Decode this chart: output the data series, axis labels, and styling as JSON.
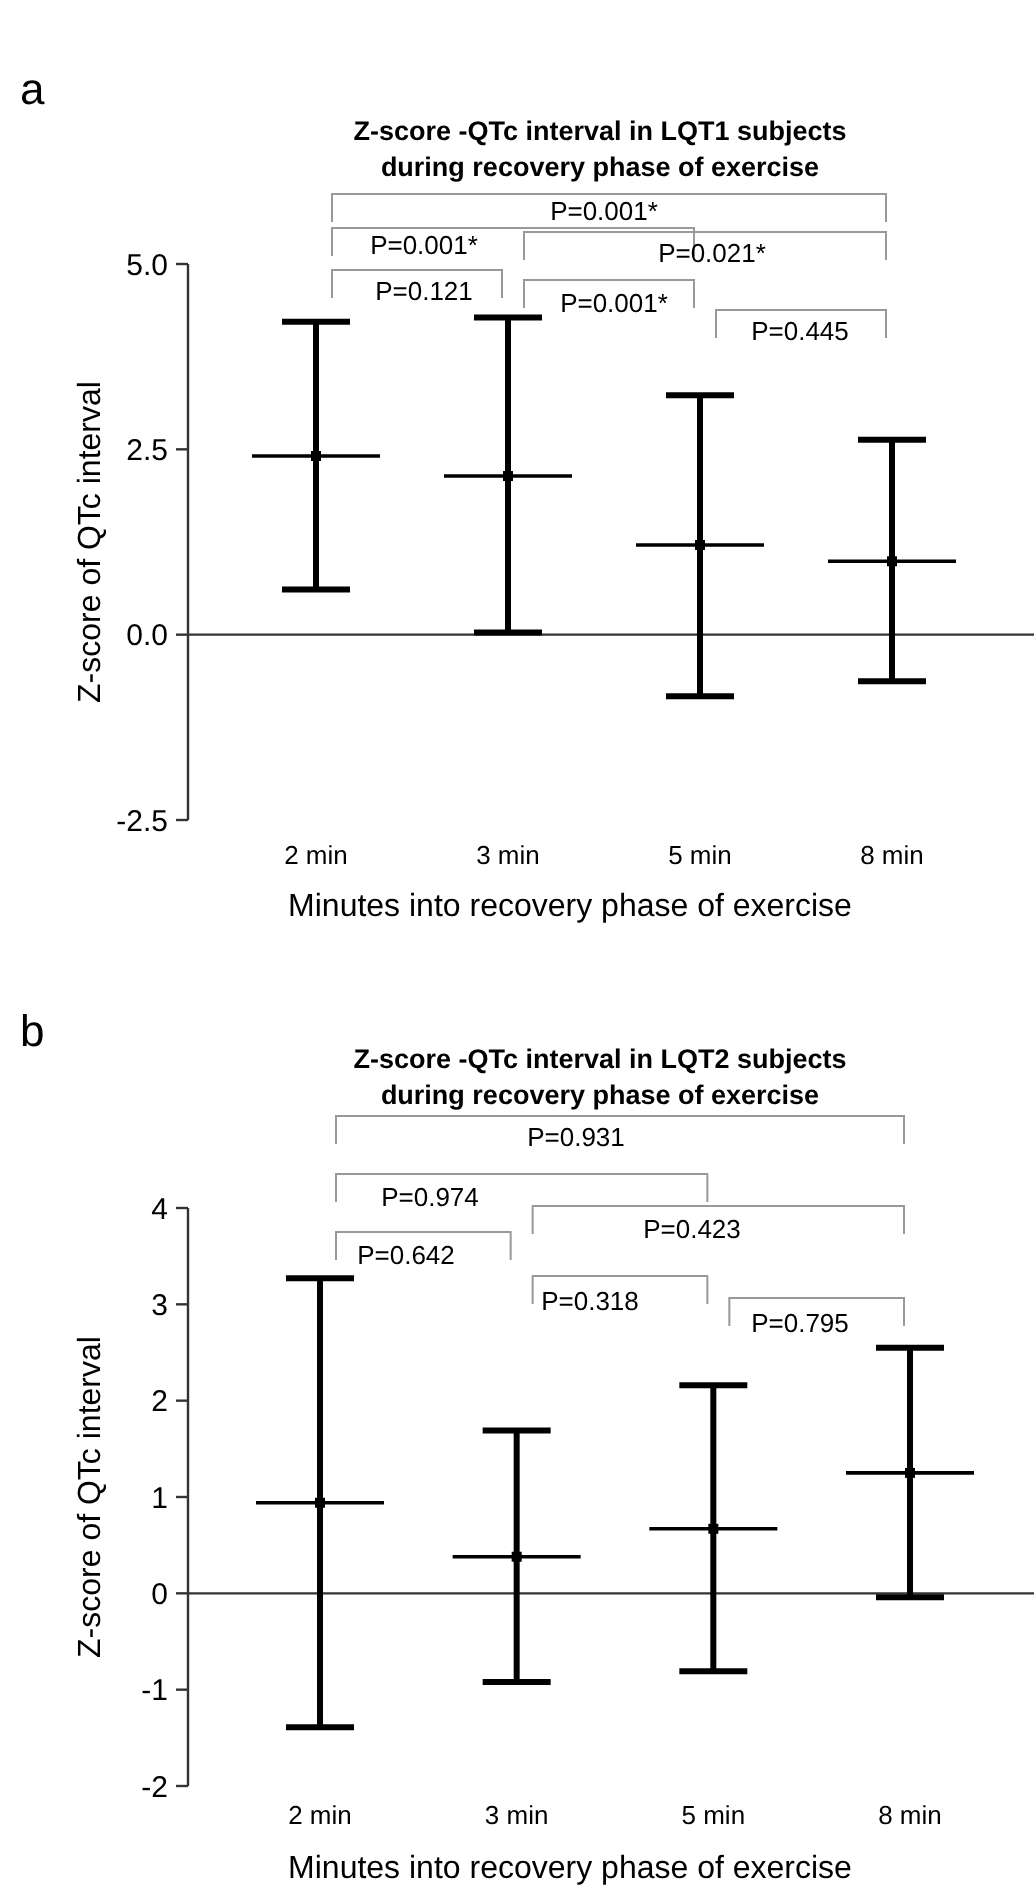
{
  "chart_data": [
    {
      "type": "scatter",
      "title": "Z-score -QTc interval in LQT1 subjects\nduring recovery phase of exercise",
      "xlabel": "Minutes into recovery phase of exercise",
      "ylabel": "Z-score of QTc interval",
      "categories": [
        "2 min",
        "3 min",
        "5 min",
        "8 min"
      ],
      "color": "#000000",
      "values": [
        2.41,
        2.14,
        1.21,
        0.99
      ],
      "errors": [
        [
          0.61,
          4.22
        ],
        [
          0.03,
          4.28
        ],
        [
          -0.83,
          3.23
        ],
        [
          -0.63,
          2.63
        ]
      ],
      "ylim": [
        -2.5,
        5
      ],
      "yticks": [
        {
          "value": -2.5,
          "label": "-2.5"
        },
        {
          "value": 0,
          "label": "0.0"
        },
        {
          "value": 2.5,
          "label": "2.5"
        },
        {
          "value": 5,
          "label": "5.0"
        }
      ],
      "annotations": [
        "a",
        "P=0.001*",
        "P=0.001*",
        "P=0.121",
        "P=0.021*",
        "P=0.001*",
        "P=0.445"
      ]
    },
    {
      "type": "scatter",
      "title": "Z-score -QTc interval in LQT2 subjects\nduring recovery phase of exercise",
      "xlabel": "Minutes into recovery phase of exercise",
      "ylabel": "Z-score of QTc interval",
      "categories": [
        "2 min",
        "3 min",
        "5 min",
        "8 min"
      ],
      "color": "#000000",
      "values": [
        0.94,
        0.38,
        0.67,
        1.25
      ],
      "errors": [
        [
          -1.39,
          3.27
        ],
        [
          -0.92,
          1.69
        ],
        [
          -0.81,
          2.16
        ],
        [
          -0.04,
          2.55
        ]
      ],
      "ylim": [
        -2,
        4
      ],
      "yticks": [
        -2,
        -1,
        0,
        1,
        2,
        3,
        4
      ],
      "annotations": [
        "b",
        "P=0.931",
        "P=0.974",
        "P=0.642",
        "P=0.423",
        "P=0.318",
        "P=0.795"
      ]
    }
  ]
}
